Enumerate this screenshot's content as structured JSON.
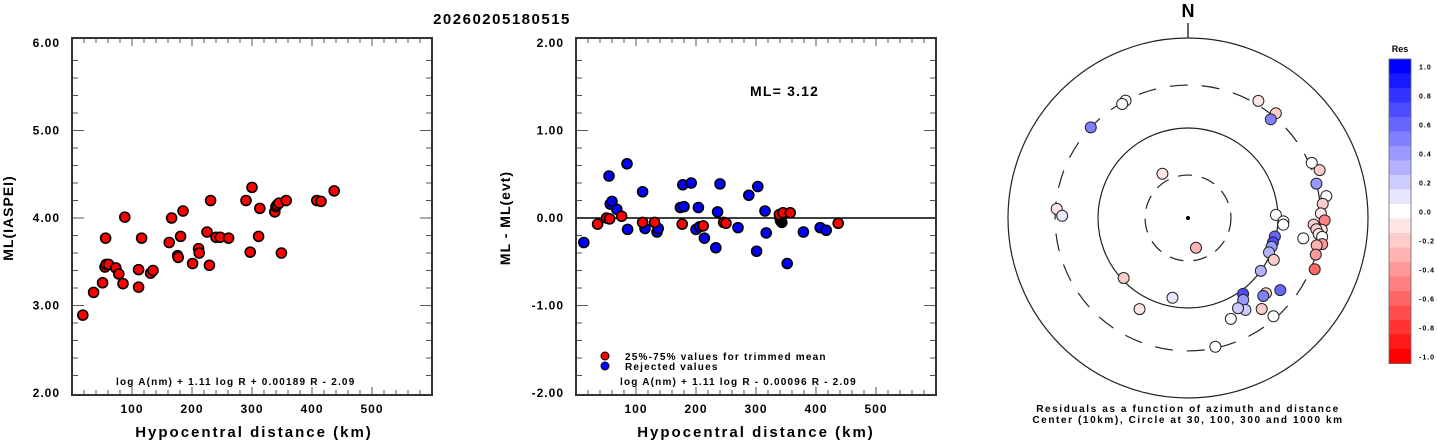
{
  "title": "20260205180515",
  "chart_data": [
    {
      "type": "scatter",
      "name": "ml-vs-distance",
      "xlabel": "Hypocentral distance (km)",
      "ylabel": "ML(IASPEI)",
      "xlim": [
        0,
        600
      ],
      "ylim": [
        2.0,
        6.0
      ],
      "xticks": [
        100,
        200,
        300,
        400,
        500
      ],
      "xtick_labels": [
        "100",
        "200",
        "300",
        "400",
        "500"
      ],
      "yticks": [
        2.0,
        3.0,
        4.0,
        5.0,
        6.0
      ],
      "ytick_labels": [
        "2.00",
        "3.00",
        "4.00",
        "5.00",
        "6.00"
      ],
      "formula": "log A(nm) + 1.11 log R + 0.00189 R - 2.09",
      "marker_color": "#ff0000",
      "points": [
        [
          18,
          2.89
        ],
        [
          36,
          3.15
        ],
        [
          51,
          3.26
        ],
        [
          55,
          3.44
        ],
        [
          56,
          3.77
        ],
        [
          57,
          3.47
        ],
        [
          61,
          3.47
        ],
        [
          73,
          3.43
        ],
        [
          78,
          3.36
        ],
        [
          85,
          3.25
        ],
        [
          88,
          4.01
        ],
        [
          111,
          3.41
        ],
        [
          111,
          3.21
        ],
        [
          116,
          3.77
        ],
        [
          131,
          3.37
        ],
        [
          135,
          3.4
        ],
        [
          162,
          3.72
        ],
        [
          166,
          4.0
        ],
        [
          176,
          3.57
        ],
        [
          177,
          3.55
        ],
        [
          181,
          3.79
        ],
        [
          185,
          4.08
        ],
        [
          201,
          3.48
        ],
        [
          211,
          3.65
        ],
        [
          212,
          3.6
        ],
        [
          225,
          3.84
        ],
        [
          229,
          3.46
        ],
        [
          231,
          4.2
        ],
        [
          240,
          3.78
        ],
        [
          247,
          3.78
        ],
        [
          261,
          3.77
        ],
        [
          290,
          4.2
        ],
        [
          297,
          3.61
        ],
        [
          300,
          4.35
        ],
        [
          311,
          3.79
        ],
        [
          313,
          4.11
        ],
        [
          338,
          4.07
        ],
        [
          340,
          4.13
        ],
        [
          342,
          4.15
        ],
        [
          345,
          4.17
        ],
        [
          349,
          3.6
        ],
        [
          357,
          4.2
        ],
        [
          408,
          4.2
        ],
        [
          415,
          4.19
        ],
        [
          437,
          4.31
        ]
      ]
    },
    {
      "type": "scatter",
      "name": "residual-vs-distance",
      "xlabel": "Hypocentral distance (km)",
      "ylabel": "ML - ML(evt)",
      "xlim": [
        0,
        600
      ],
      "ylim": [
        -2.0,
        2.0
      ],
      "xticks": [
        100,
        200,
        300,
        400,
        500
      ],
      "xtick_labels": [
        "100",
        "200",
        "300",
        "400",
        "500"
      ],
      "yticks": [
        -2.0,
        -1.0,
        0.0,
        1.0,
        2.0
      ],
      "ytick_labels": [
        "-2.00",
        "-1.00",
        "0.00",
        "1.00",
        "2.00"
      ],
      "annotation": "ML= 3.12",
      "formula": "log A(nm) + 1.11 log R - 0.00096 R - 2.09",
      "legend": [
        {
          "label": "25%-75% values for trimmed mean",
          "color": "#ff0000"
        },
        {
          "label": "Rejected values",
          "color": "#0000ff"
        }
      ],
      "legend_position": "bottom-left",
      "series": [
        {
          "name": "25%-75% values for trimmed mean",
          "color": "#ff0000",
          "points": [
            [
              36,
              -0.07
            ],
            [
              51,
              0.0
            ],
            [
              56,
              -0.01
            ],
            [
              76,
              0.02
            ],
            [
              111,
              -0.05
            ],
            [
              131,
              -0.05
            ],
            [
              177,
              -0.07
            ],
            [
              212,
              -0.09
            ],
            [
              246,
              -0.05
            ],
            [
              250,
              -0.06
            ],
            [
              339,
              0.04
            ],
            [
              345,
              0.06
            ],
            [
              357,
              0.06
            ],
            [
              437,
              -0.06
            ]
          ]
        },
        {
          "name": "Rejected values",
          "color": "#0000ff",
          "points": [
            [
              13,
              -0.28
            ],
            [
              55,
              0.48
            ],
            [
              57,
              0.16
            ],
            [
              60,
              0.19
            ],
            [
              68,
              0.1
            ],
            [
              85,
              0.62
            ],
            [
              86,
              -0.13
            ],
            [
              111,
              0.3
            ],
            [
              115,
              -0.12
            ],
            [
              135,
              -0.16
            ],
            [
              137,
              -0.12
            ],
            [
              174,
              0.12
            ],
            [
              178,
              0.38
            ],
            [
              180,
              0.13
            ],
            [
              192,
              0.4
            ],
            [
              200,
              -0.13
            ],
            [
              204,
              0.12
            ],
            [
              206,
              -0.1
            ],
            [
              214,
              -0.23
            ],
            [
              233,
              -0.34
            ],
            [
              236,
              0.07
            ],
            [
              240,
              0.39
            ],
            [
              270,
              -0.11
            ],
            [
              288,
              0.26
            ],
            [
              301,
              -0.38
            ],
            [
              303,
              0.36
            ],
            [
              315,
              0.08
            ],
            [
              317,
              -0.17
            ],
            [
              352,
              -0.52
            ],
            [
              379,
              -0.16
            ],
            [
              407,
              -0.11
            ],
            [
              417,
              -0.14
            ]
          ]
        },
        {
          "name": "overlapping-black",
          "color": "#000000",
          "points": [
            [
              340,
              0.0
            ],
            [
              341,
              -0.03
            ],
            [
              343,
              -0.05
            ]
          ]
        }
      ]
    },
    {
      "type": "scatter",
      "name": "residual-azimuth-distance",
      "projection": "polar-log",
      "north_label": "N",
      "caption_line1": "Residuals as a function of azimuth and distance",
      "caption_line2": "Center (10km), Circle at 30, 100, 300 and 1000 km",
      "rings_km": [
        30,
        100,
        300,
        1000
      ],
      "ring_styles": [
        "dashed",
        "solid",
        "dashed",
        "solid"
      ],
      "colorbar": {
        "title": "Res",
        "ticks": [
          "1.0",
          "0.8",
          "0.6",
          "0.4",
          "0.2",
          "0.0",
          "-0.2",
          "-0.4",
          "-0.6",
          "-0.8",
          "-1.0"
        ],
        "range": [
          -1.0,
          1.0
        ],
        "high_color": "#0000ff",
        "mid_color": "#ffffff",
        "low_color": "#ff0000"
      },
      "stations": [
        {
          "az": 332,
          "dist": 300,
          "res": 0.0
        },
        {
          "az": 330,
          "dist": 290,
          "res": 0.0
        },
        {
          "az": 313,
          "dist": 300,
          "res": 0.45
        },
        {
          "az": 31,
          "dist": 330,
          "res": -0.15
        },
        {
          "az": 40,
          "dist": 330,
          "res": -0.2
        },
        {
          "az": 40,
          "dist": 270,
          "res": 0.5
        },
        {
          "az": 66,
          "dist": 320,
          "res": 0.0
        },
        {
          "az": 70,
          "dist": 360,
          "res": -0.2
        },
        {
          "az": 75,
          "dist": 300,
          "res": 0.35
        },
        {
          "az": 81,
          "dist": 360,
          "res": 0.0
        },
        {
          "az": 84,
          "dist": 320,
          "res": -0.2
        },
        {
          "az": 88,
          "dist": 300,
          "res": -0.1
        },
        {
          "az": 91,
          "dist": 330,
          "res": -0.5
        },
        {
          "az": 93,
          "dist": 250,
          "res": -0.25
        },
        {
          "az": 95,
          "dist": 310,
          "res": -0.15
        },
        {
          "az": 95,
          "dist": 270,
          "res": -0.2
        },
        {
          "az": 97,
          "dist": 290,
          "res": -0.1
        },
        {
          "az": 98,
          "dist": 320,
          "res": 0.0
        },
        {
          "az": 100,
          "dist": 200,
          "res": 0.0
        },
        {
          "az": 101,
          "dist": 330,
          "res": -0.45
        },
        {
          "az": 102,
          "dist": 290,
          "res": -0.35
        },
        {
          "az": 106,
          "dist": 300,
          "res": -0.4
        },
        {
          "az": 112,
          "dist": 330,
          "res": -0.6
        },
        {
          "az": 88,
          "dist": 95,
          "res": 0.0
        },
        {
          "az": 92,
          "dist": 115,
          "res": 0.0
        },
        {
          "az": 94,
          "dist": 115,
          "res": 0.0
        },
        {
          "az": 102,
          "dist": 97,
          "res": 0.6
        },
        {
          "az": 106,
          "dist": 96,
          "res": 0.65
        },
        {
          "az": 109,
          "dist": 96,
          "res": 0.4
        },
        {
          "az": 113,
          "dist": 95,
          "res": 0.3
        },
        {
          "az": 116,
          "dist": 115,
          "res": -0.2
        },
        {
          "az": 126,
          "dist": 100,
          "res": 0.25
        },
        {
          "az": 134,
          "dist": 160,
          "res": -0.2
        },
        {
          "az": 128,
          "dist": 200,
          "res": 0.55
        },
        {
          "az": 136,
          "dist": 160,
          "res": 0.5
        },
        {
          "az": 144,
          "dist": 110,
          "res": 0.7
        },
        {
          "az": 146,
          "dist": 125,
          "res": 0.4
        },
        {
          "az": 141,
          "dist": 200,
          "res": -0.2
        },
        {
          "az": 148,
          "dist": 160,
          "res": 0.15
        },
        {
          "az": 151,
          "dist": 140,
          "res": 0.15
        },
        {
          "az": 139,
          "dist": 280,
          "res": 0.0
        },
        {
          "az": 157,
          "dist": 165,
          "res": 0.0
        },
        {
          "az": 168,
          "dist": 290,
          "res": 0.0
        },
        {
          "az": 165,
          "dist": 22,
          "res": -0.35
        },
        {
          "az": 330,
          "dist": 37,
          "res": -0.15
        },
        {
          "az": 191,
          "dist": 80,
          "res": 0.05
        },
        {
          "az": 227,
          "dist": 95,
          "res": -0.25
        },
        {
          "az": 208,
          "dist": 140,
          "res": -0.15
        },
        {
          "az": 274,
          "dist": 290,
          "res": -0.15
        },
        {
          "az": 271,
          "dist": 250,
          "res": 0.1
        }
      ]
    }
  ]
}
